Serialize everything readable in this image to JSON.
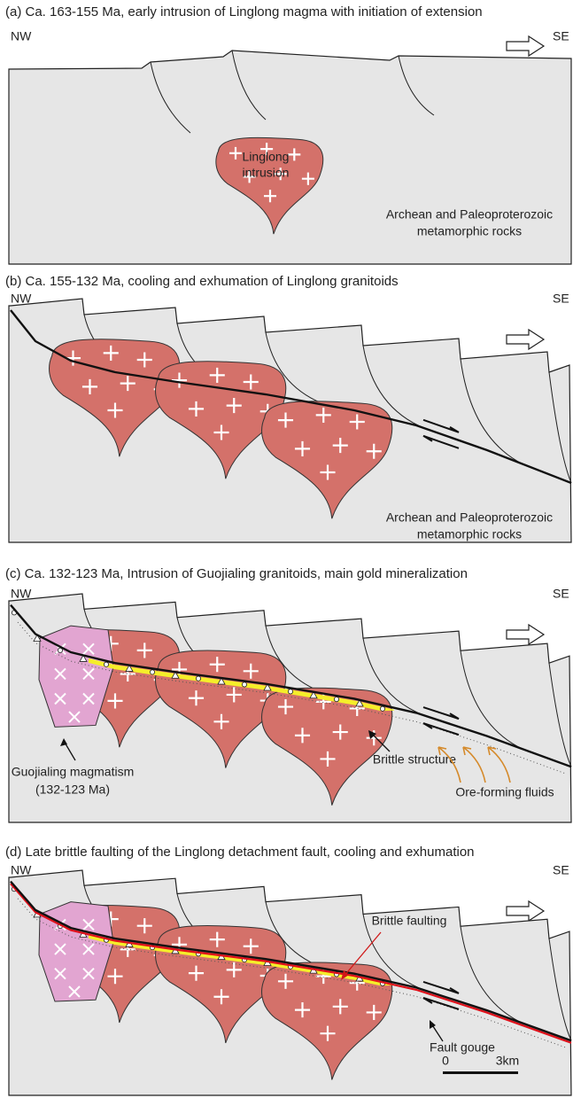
{
  "panels": [
    {
      "title": "(a) Ca. 163-155 Ma, early intrusion of Linglong magma with initiation of extension",
      "left": "NW",
      "right": "SE",
      "labels": [
        {
          "lines": [
            "Linglong",
            "intrusion"
          ]
        },
        {
          "lines": [
            "Archean and Paleoproterozoic",
            "metamorphic rocks"
          ]
        }
      ]
    },
    {
      "title": "(b) Ca. 155-132 Ma, cooling and exhumation of Linglong granitoids",
      "left": "NW",
      "right": "SE",
      "labels": [
        {
          "lines": [
            "Archean and Paleoproterozoic",
            "metamorphic rocks"
          ]
        }
      ]
    },
    {
      "title": "(c) Ca. 132-123 Ma, Intrusion of Guojialing granitoids, main gold mineralization",
      "left": "NW",
      "right": "SE",
      "labels": [
        {
          "lines": [
            "Guojialing magmatism",
            "(132-123 Ma)"
          ]
        },
        {
          "lines": [
            "Brittle structure"
          ]
        },
        {
          "lines": [
            "Ore-forming fluids"
          ]
        }
      ]
    },
    {
      "title": "(d) Late brittle faulting of the Linglong detachment fault, cooling and exhumation",
      "left": "NW",
      "right": "SE",
      "labels": [
        {
          "lines": [
            "Brittle faulting"
          ]
        },
        {
          "lines": [
            "Fault gouge"
          ]
        }
      ]
    }
  ],
  "scale": {
    "start": "0",
    "end": "3km"
  }
}
